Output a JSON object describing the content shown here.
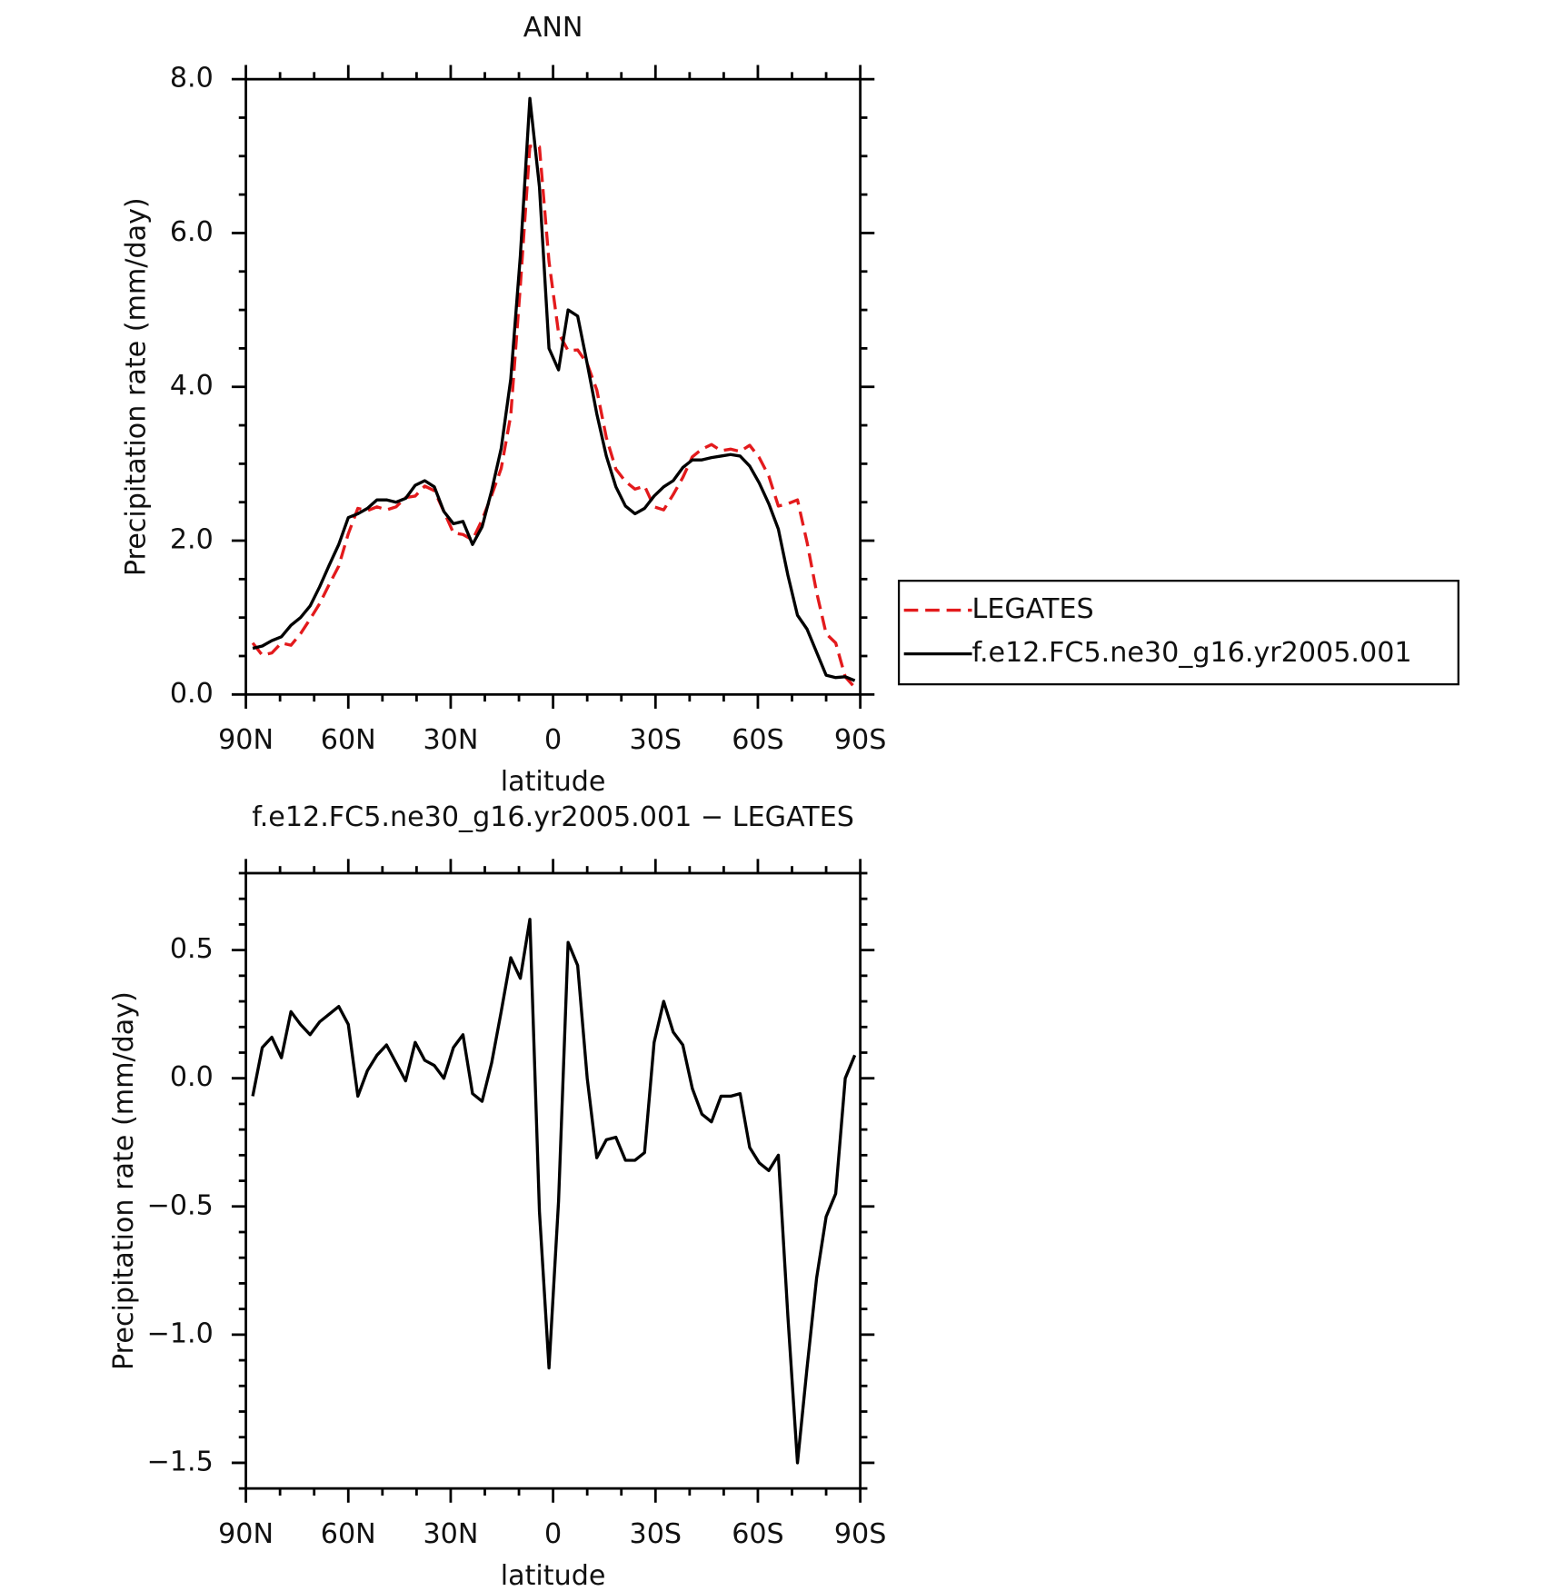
{
  "chart_data": [
    {
      "type": "line",
      "title": "ANN",
      "xlabel": "latitude",
      "ylabel": "Precipitation rate (mm/day)",
      "x": [
        88,
        85.2,
        82.4,
        79.6,
        76.8,
        74,
        71.2,
        68.4,
        65.6,
        62.8,
        60,
        57.2,
        54.4,
        51.6,
        48.8,
        46,
        43.2,
        40.4,
        37.6,
        34.8,
        32,
        29.2,
        26.4,
        23.6,
        20.8,
        18,
        15.2,
        12.4,
        9.6,
        6.8,
        4,
        1.2,
        -1.6,
        -4.4,
        -7.2,
        -10,
        -12.8,
        -15.6,
        -18.4,
        -21.2,
        -24,
        -26.8,
        -29.6,
        -32.4,
        -35.2,
        -38,
        -40.8,
        -43.6,
        -46.4,
        -49.2,
        -52,
        -54.8,
        -57.6,
        -60.4,
        -63.2,
        -66,
        -68.8,
        -71.6,
        -74.4,
        -77.2,
        -80,
        -82.8,
        -85.6,
        -88.4
      ],
      "series": [
        {
          "name": "LEGATES",
          "color": "#e31a1c",
          "dashed": true,
          "values": [
            0.67,
            0.51,
            0.54,
            0.67,
            0.64,
            0.79,
            0.98,
            1.18,
            1.43,
            1.67,
            2.09,
            2.42,
            2.39,
            2.44,
            2.4,
            2.44,
            2.56,
            2.58,
            2.71,
            2.65,
            2.38,
            2.1,
            2.08,
            2.01,
            2.27,
            2.59,
            2.94,
            3.63,
            5.31,
            7.13,
            7.12,
            5.63,
            4.7,
            4.47,
            4.48,
            4.3,
            3.96,
            3.34,
            2.93,
            2.77,
            2.67,
            2.71,
            2.44,
            2.4,
            2.6,
            2.82,
            3.09,
            3.19,
            3.25,
            3.17,
            3.19,
            3.16,
            3.24,
            3.08,
            2.84,
            2.45,
            2.48,
            2.53,
            1.98,
            1.33,
            0.79,
            0.67,
            0.23,
            0.09
          ]
        },
        {
          "name": "f.e12.FC5.ne30_g16.yr2005.001",
          "color": "#000000",
          "dashed": false,
          "values": [
            0.6,
            0.63,
            0.7,
            0.75,
            0.9,
            1.0,
            1.15,
            1.4,
            1.68,
            1.95,
            2.3,
            2.35,
            2.42,
            2.53,
            2.53,
            2.5,
            2.55,
            2.72,
            2.78,
            2.7,
            2.38,
            2.22,
            2.25,
            1.95,
            2.18,
            2.65,
            3.2,
            4.1,
            5.7,
            7.75,
            6.6,
            4.5,
            4.22,
            5.0,
            4.92,
            4.3,
            3.65,
            3.1,
            2.7,
            2.45,
            2.35,
            2.42,
            2.58,
            2.7,
            2.78,
            2.95,
            3.05,
            3.05,
            3.08,
            3.1,
            3.12,
            3.1,
            2.97,
            2.75,
            2.48,
            2.15,
            1.55,
            1.03,
            0.85,
            0.55,
            0.25,
            0.22,
            0.23,
            0.18
          ]
        }
      ],
      "xlim": [
        90,
        -90
      ],
      "xticks": [
        {
          "value": 90,
          "label": "90N"
        },
        {
          "value": 60,
          "label": "60N"
        },
        {
          "value": 30,
          "label": "30N"
        },
        0,
        {
          "value": -30,
          "label": "30S"
        },
        {
          "value": -60,
          "label": "60S"
        },
        {
          "value": -90,
          "label": "90S"
        }
      ],
      "ylim": [
        0,
        8
      ],
      "yticks": [
        {
          "value": 0,
          "label": "0.0"
        },
        {
          "value": 2,
          "label": "2.0"
        },
        {
          "value": 4,
          "label": "4.0"
        },
        {
          "value": 6,
          "label": "6.0"
        },
        {
          "value": 8,
          "label": "8.0"
        }
      ],
      "grid": false,
      "legend": "right"
    },
    {
      "type": "line",
      "title": "f.e12.FC5.ne30_g16.yr2005.001 − LEGATES",
      "xlabel": "latitude",
      "ylabel": "Precipitation rate (mm/day)",
      "x": [
        88,
        85.2,
        82.4,
        79.6,
        76.8,
        74,
        71.2,
        68.4,
        65.6,
        62.8,
        60,
        57.2,
        54.4,
        51.6,
        48.8,
        46,
        43.2,
        40.4,
        37.6,
        34.8,
        32,
        29.2,
        26.4,
        23.6,
        20.8,
        18,
        15.2,
        12.4,
        9.6,
        6.8,
        4,
        1.2,
        -1.6,
        -4.4,
        -7.2,
        -10,
        -12.8,
        -15.6,
        -18.4,
        -21.2,
        -24,
        -26.8,
        -29.6,
        -32.4,
        -35.2,
        -38,
        -40.8,
        -43.6,
        -46.4,
        -49.2,
        -52,
        -54.8,
        -57.6,
        -60.4,
        -63.2,
        -66,
        -68.8,
        -71.6,
        -74.4,
        -77.2,
        -80,
        -82.8,
        -85.6,
        -88.4
      ],
      "series": [
        {
          "color": "#000000",
          "dashed": false,
          "values": [
            -0.07,
            0.12,
            0.16,
            0.08,
            0.26,
            0.21,
            0.17,
            0.22,
            0.25,
            0.28,
            0.21,
            -0.07,
            0.03,
            0.09,
            0.13,
            0.06,
            -0.01,
            0.14,
            0.07,
            0.05,
            0.0,
            0.12,
            0.17,
            -0.06,
            -0.09,
            0.06,
            0.26,
            0.47,
            0.39,
            0.62,
            -0.52,
            -1.13,
            -0.48,
            0.53,
            0.44,
            0.0,
            -0.31,
            -0.24,
            -0.23,
            -0.32,
            -0.32,
            -0.29,
            0.14,
            0.3,
            0.18,
            0.13,
            -0.04,
            -0.14,
            -0.17,
            -0.07,
            -0.07,
            -0.06,
            -0.27,
            -0.33,
            -0.36,
            -0.3,
            -0.93,
            -1.5,
            -1.13,
            -0.78,
            -0.54,
            -0.45,
            0.0,
            0.09
          ]
        }
      ],
      "xlim": [
        90,
        -90
      ],
      "xticks": [
        {
          "value": 90,
          "label": "90N"
        },
        {
          "value": 60,
          "label": "60N"
        },
        {
          "value": 30,
          "label": "30N"
        },
        0,
        {
          "value": -30,
          "label": "30S"
        },
        {
          "value": -60,
          "label": "60S"
        },
        {
          "value": -90,
          "label": "90S"
        }
      ],
      "ylim": [
        -1.6,
        0.8
      ],
      "yticks": [
        {
          "value": -1.5,
          "label": "−1.5"
        },
        {
          "value": -1,
          "label": "−1.0"
        },
        {
          "value": -0.5,
          "label": "−0.5"
        },
        {
          "value": 0,
          "label": "0.0"
        },
        0.5
      ],
      "grid": false
    }
  ]
}
